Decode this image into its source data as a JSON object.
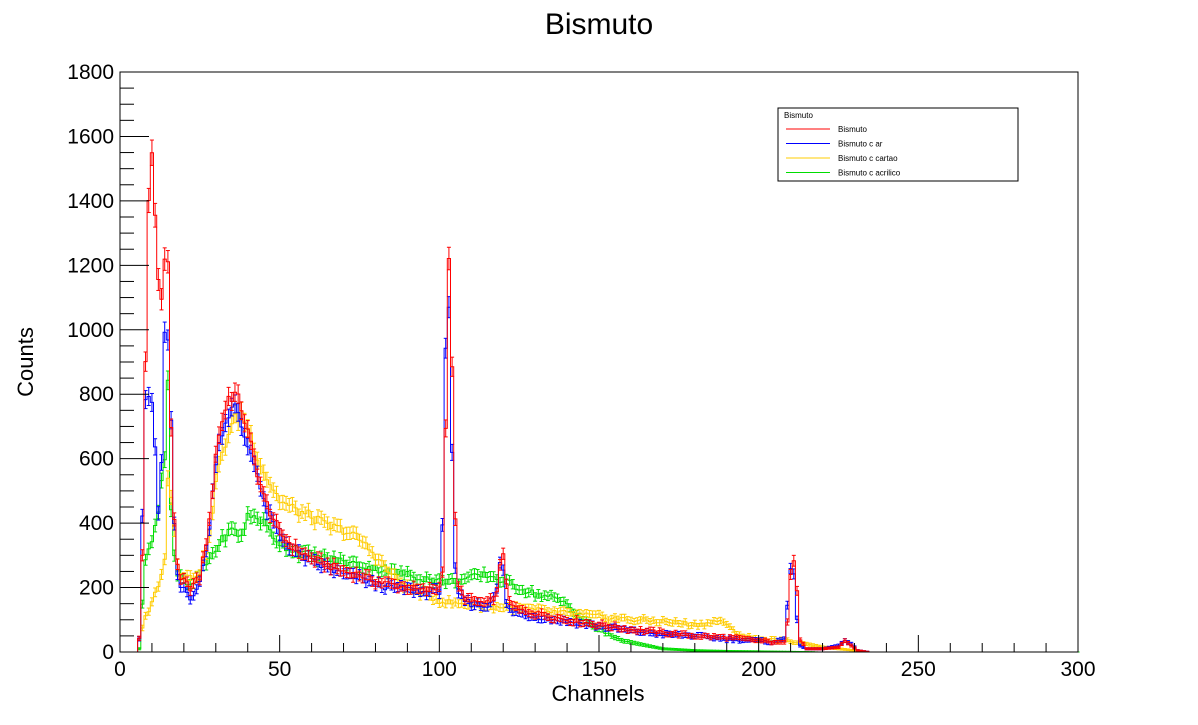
{
  "chart_data": {
    "type": "line",
    "title": "Bismuto",
    "xlabel": "Channels",
    "ylabel": "Counts",
    "xlim": [
      0,
      300
    ],
    "ylim": [
      0,
      1800
    ],
    "x_ticks": [
      0,
      50,
      100,
      150,
      200,
      250,
      300
    ],
    "y_ticks": [
      0,
      200,
      400,
      600,
      800,
      1000,
      1200,
      1400,
      1600,
      1800
    ],
    "grid": false,
    "error_bars": true,
    "legend": {
      "title": "Bismuto",
      "position": "top-right"
    },
    "series": [
      {
        "name": "Bismuto",
        "color": "#ff0000",
        "x": [
          5,
          6,
          7,
          8,
          9,
          10,
          11,
          12,
          13,
          14,
          15,
          16,
          17,
          18,
          19,
          20,
          22,
          25,
          28,
          30,
          32,
          34,
          36,
          38,
          40,
          42,
          45,
          50,
          55,
          60,
          65,
          70,
          75,
          80,
          85,
          90,
          95,
          100,
          101,
          102,
          103,
          104,
          105,
          106,
          108,
          110,
          115,
          118,
          119,
          120,
          121,
          122,
          125,
          130,
          140,
          150,
          160,
          170,
          180,
          190,
          200,
          205,
          208,
          209,
          210,
          211,
          212,
          213,
          215,
          220,
          225,
          227,
          229,
          231,
          235
        ],
        "y": [
          0,
          40,
          300,
          900,
          1400,
          1580,
          1350,
          1150,
          1100,
          1200,
          1220,
          700,
          420,
          260,
          220,
          220,
          200,
          230,
          400,
          620,
          720,
          790,
          800,
          760,
          680,
          600,
          480,
          370,
          320,
          290,
          270,
          250,
          240,
          220,
          210,
          200,
          190,
          200,
          260,
          700,
          1200,
          900,
          400,
          200,
          170,
          160,
          150,
          180,
          260,
          310,
          220,
          150,
          130,
          120,
          100,
          85,
          70,
          60,
          50,
          45,
          35,
          30,
          30,
          100,
          250,
          295,
          200,
          40,
          10,
          10,
          15,
          35,
          20,
          5,
          0
        ]
      },
      {
        "name": "Bismuto c ar",
        "color": "#0000ff",
        "x": [
          5,
          6,
          7,
          8,
          9,
          10,
          11,
          12,
          13,
          14,
          15,
          16,
          17,
          18,
          19,
          20,
          22,
          25,
          28,
          30,
          32,
          34,
          36,
          38,
          40,
          42,
          45,
          50,
          55,
          60,
          65,
          70,
          75,
          80,
          85,
          90,
          95,
          100,
          101,
          102,
          103,
          104,
          105,
          106,
          108,
          110,
          115,
          118,
          119,
          120,
          121,
          122,
          125,
          130,
          140,
          150,
          160,
          170,
          180,
          190,
          200,
          205,
          208,
          209,
          210,
          211,
          212,
          213,
          215,
          220,
          225,
          227,
          229,
          231,
          235
        ],
        "y": [
          0,
          40,
          420,
          780,
          790,
          780,
          620,
          420,
          600,
          980,
          960,
          700,
          400,
          230,
          200,
          200,
          170,
          210,
          380,
          600,
          690,
          740,
          760,
          700,
          640,
          600,
          460,
          360,
          310,
          280,
          260,
          240,
          230,
          210,
          200,
          195,
          185,
          190,
          400,
          950,
          1050,
          600,
          250,
          180,
          160,
          150,
          140,
          200,
          270,
          250,
          150,
          130,
          120,
          110,
          95,
          80,
          65,
          55,
          50,
          40,
          35,
          30,
          40,
          150,
          270,
          250,
          100,
          20,
          10,
          10,
          20,
          35,
          25,
          5,
          0
        ]
      },
      {
        "name": "Bismuto c cartao",
        "color": "#ffcc00",
        "x": [
          5,
          7,
          10,
          12,
          14,
          15,
          16,
          17,
          18,
          19,
          20,
          22,
          25,
          28,
          30,
          32,
          34,
          36,
          38,
          40,
          42,
          45,
          50,
          55,
          60,
          65,
          70,
          75,
          80,
          85,
          90,
          95,
          100,
          105,
          110,
          115,
          120,
          125,
          130,
          140,
          150,
          160,
          170,
          175,
          180,
          185,
          188,
          190,
          195,
          200,
          210,
          215,
          220,
          225,
          230
        ],
        "y": [
          0,
          80,
          160,
          200,
          300,
          550,
          480,
          380,
          280,
          240,
          240,
          230,
          250,
          350,
          520,
          620,
          680,
          720,
          740,
          700,
          640,
          560,
          470,
          440,
          420,
          390,
          380,
          350,
          300,
          240,
          200,
          180,
          160,
          150,
          150,
          140,
          140,
          135,
          130,
          120,
          110,
          100,
          95,
          90,
          85,
          90,
          100,
          80,
          50,
          40,
          35,
          25,
          15,
          10,
          5
        ]
      },
      {
        "name": "Bismuto c acrilico",
        "color": "#00dd00",
        "x": [
          5,
          6,
          7,
          8,
          10,
          12,
          13,
          14,
          15,
          16,
          17,
          18,
          20,
          22,
          25,
          28,
          30,
          33,
          35,
          38,
          40,
          43,
          45,
          48,
          50,
          55,
          60,
          65,
          70,
          75,
          80,
          85,
          90,
          95,
          100,
          105,
          110,
          115,
          120,
          125,
          130,
          135,
          140,
          145,
          150,
          155,
          160,
          165,
          170,
          180,
          190,
          200,
          210,
          220,
          230,
          240,
          250,
          260,
          270,
          280,
          290,
          300
        ],
        "y": [
          0,
          10,
          150,
          300,
          340,
          430,
          550,
          600,
          850,
          450,
          300,
          240,
          220,
          200,
          240,
          290,
          320,
          360,
          380,
          360,
          420,
          420,
          400,
          360,
          340,
          310,
          300,
          290,
          280,
          270,
          260,
          250,
          240,
          230,
          220,
          220,
          230,
          240,
          220,
          200,
          180,
          170,
          150,
          100,
          70,
          45,
          30,
          20,
          10,
          5,
          3,
          2,
          1,
          0,
          0,
          0,
          0,
          0,
          0,
          0,
          0,
          0
        ]
      }
    ]
  }
}
